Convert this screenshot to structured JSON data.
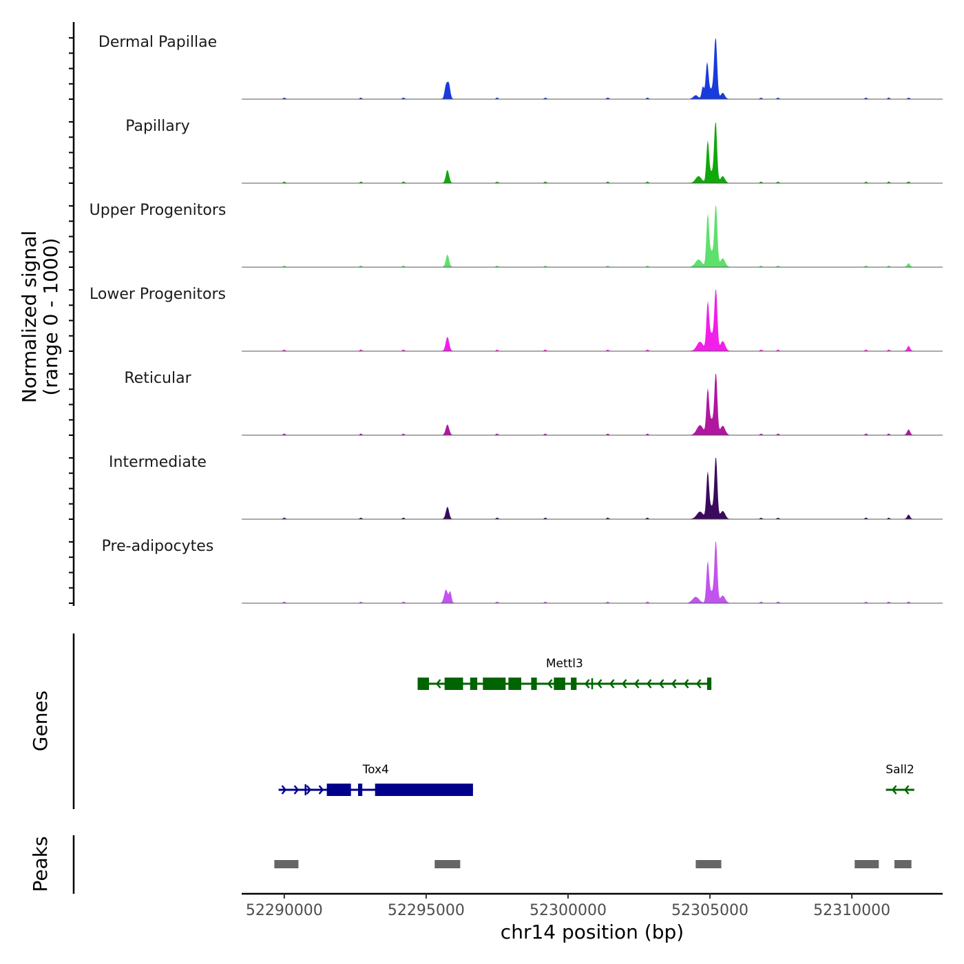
{
  "chart_data": {
    "type": "area",
    "title": "",
    "ylabel_line1": "Normalized signal",
    "ylabel_line2": "(range 0 - 1000)",
    "xlabel": "chr14 position (bp)",
    "xlim": [
      52288500,
      52313200
    ],
    "ylim": [
      0,
      1000
    ],
    "x_ticks": [
      52290000,
      52295000,
      52300000,
      52305000,
      52310000
    ],
    "x_tick_labels": [
      "52290000",
      "52295000",
      "52300000",
      "52305000",
      "52310000"
    ],
    "background_peaks": [
      52290000,
      52292700,
      52294200,
      52297500,
      52299200,
      52301400,
      52302800,
      52306800,
      52307400,
      52310500,
      52311300,
      52312000
    ],
    "series": [
      {
        "name": "Dermal Papillae",
        "color": "#1a3bdb",
        "peaks": [
          {
            "center": 52295700,
            "width": 70,
            "height": 220
          },
          {
            "center": 52295800,
            "width": 70,
            "height": 240
          },
          {
            "center": 52304500,
            "width": 120,
            "height": 60
          },
          {
            "center": 52304750,
            "width": 60,
            "height": 200
          },
          {
            "center": 52304900,
            "width": 70,
            "height": 580
          },
          {
            "center": 52305050,
            "width": 110,
            "height": 150
          },
          {
            "center": 52305200,
            "width": 75,
            "height": 1000
          },
          {
            "center": 52305450,
            "width": 100,
            "height": 100
          }
        ]
      },
      {
        "name": "Papillary",
        "color": "#11a80a",
        "peaks": [
          {
            "center": 52295750,
            "width": 80,
            "height": 210
          },
          {
            "center": 52304600,
            "width": 150,
            "height": 110
          },
          {
            "center": 52304920,
            "width": 65,
            "height": 640
          },
          {
            "center": 52305050,
            "width": 120,
            "height": 170
          },
          {
            "center": 52305200,
            "width": 70,
            "height": 1000
          },
          {
            "center": 52305450,
            "width": 110,
            "height": 110
          }
        ]
      },
      {
        "name": "Upper Progenitors",
        "color": "#5ee06d",
        "peaks": [
          {
            "center": 52295750,
            "width": 80,
            "height": 200
          },
          {
            "center": 52304600,
            "width": 160,
            "height": 120
          },
          {
            "center": 52304920,
            "width": 65,
            "height": 780
          },
          {
            "center": 52305050,
            "width": 130,
            "height": 250
          },
          {
            "center": 52305210,
            "width": 70,
            "height": 1000
          },
          {
            "center": 52305450,
            "width": 120,
            "height": 140
          },
          {
            "center": 52312000,
            "width": 80,
            "height": 40
          }
        ]
      },
      {
        "name": "Lower Progenitors",
        "color": "#f21ee9",
        "peaks": [
          {
            "center": 52295750,
            "width": 85,
            "height": 230
          },
          {
            "center": 52304650,
            "width": 160,
            "height": 150
          },
          {
            "center": 52304920,
            "width": 65,
            "height": 700
          },
          {
            "center": 52305050,
            "width": 130,
            "height": 280
          },
          {
            "center": 52305210,
            "width": 70,
            "height": 1000
          },
          {
            "center": 52305450,
            "width": 120,
            "height": 160
          },
          {
            "center": 52312000,
            "width": 80,
            "height": 60
          }
        ]
      },
      {
        "name": "Reticular",
        "color": "#b0179f",
        "peaks": [
          {
            "center": 52295750,
            "width": 85,
            "height": 170
          },
          {
            "center": 52304650,
            "width": 160,
            "height": 160
          },
          {
            "center": 52304920,
            "width": 65,
            "height": 660
          },
          {
            "center": 52305050,
            "width": 130,
            "height": 250
          },
          {
            "center": 52305210,
            "width": 70,
            "height": 1000
          },
          {
            "center": 52305450,
            "width": 120,
            "height": 150
          },
          {
            "center": 52312000,
            "width": 80,
            "height": 70
          }
        ]
      },
      {
        "name": "Intermediate",
        "color": "#3b0a5c",
        "peaks": [
          {
            "center": 52295750,
            "width": 80,
            "height": 200
          },
          {
            "center": 52304650,
            "width": 160,
            "height": 120
          },
          {
            "center": 52304920,
            "width": 65,
            "height": 700
          },
          {
            "center": 52305050,
            "width": 130,
            "height": 200
          },
          {
            "center": 52305210,
            "width": 70,
            "height": 1000
          },
          {
            "center": 52305450,
            "width": 120,
            "height": 130
          },
          {
            "center": 52312000,
            "width": 80,
            "height": 50
          }
        ]
      },
      {
        "name": "Pre-adipocytes",
        "color": "#c254ee",
        "peaks": [
          {
            "center": 52295700,
            "width": 90,
            "height": 220
          },
          {
            "center": 52295850,
            "width": 60,
            "height": 180
          },
          {
            "center": 52304500,
            "width": 160,
            "height": 100
          },
          {
            "center": 52304920,
            "width": 65,
            "height": 620
          },
          {
            "center": 52305050,
            "width": 130,
            "height": 180
          },
          {
            "center": 52305210,
            "width": 70,
            "height": 1000
          },
          {
            "center": 52305450,
            "width": 120,
            "height": 120
          }
        ]
      }
    ],
    "genes_track": {
      "title": "Genes",
      "genes": [
        {
          "name": "Mettl3",
          "strand": "-",
          "color": "#006400",
          "row": 1,
          "start": 52294700,
          "end": 52305050,
          "exons": [
            [
              52294700,
              52295100
            ],
            [
              52295650,
              52296300
            ],
            [
              52296550,
              52296800
            ],
            [
              52297000,
              52297800
            ],
            [
              52297900,
              52298350
            ],
            [
              52298700,
              52298900
            ],
            [
              52299500,
              52299900
            ],
            [
              52300100,
              52300300
            ],
            [
              52304900,
              52305050
            ]
          ],
          "intron_marks": [
            52300850
          ]
        },
        {
          "name": "Tox4",
          "strand": "+",
          "color": "#00008b",
          "row": 2,
          "start": 52289800,
          "end": 52296650,
          "exons": [
            [
              52291500,
              52292350
            ],
            [
              52292600,
              52292750
            ],
            [
              52293200,
              52296650
            ]
          ],
          "intron_marks": [
            52290750
          ]
        },
        {
          "name": "Sall2",
          "strand": "-",
          "color": "#006400",
          "row": 2,
          "start": 52311200,
          "end": 52312200,
          "exons": [],
          "intron_marks": []
        }
      ]
    },
    "peaks_track": {
      "title": "Peaks",
      "color": "#666666",
      "regions": [
        [
          52289650,
          52290500
        ],
        [
          52295300,
          52296200
        ],
        [
          52304500,
          52305400
        ],
        [
          52310100,
          52310950
        ],
        [
          52311500,
          52312100
        ]
      ]
    }
  }
}
